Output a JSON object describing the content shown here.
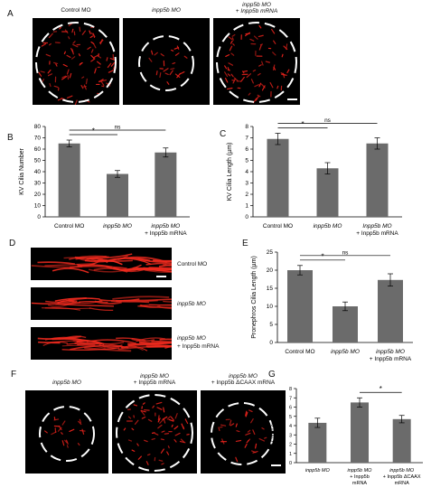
{
  "figure": {
    "panels": {
      "A": "A",
      "B": "B",
      "C": "C",
      "D": "D",
      "E": "E",
      "F": "F",
      "G": "G"
    },
    "panelA": {
      "captions": [
        {
          "line1": "Control MO",
          "line2": ""
        },
        {
          "line1": "inpp5b MO",
          "line2": ""
        },
        {
          "line1": "inpp5b MO",
          "line2": "+ Inpp5b mRNA"
        }
      ]
    },
    "panelD": {
      "labels": [
        {
          "line1": "Control MO",
          "line2": ""
        },
        {
          "line1": "inpp5b MO",
          "line2": ""
        },
        {
          "line1": "inpp5b MO",
          "line2": "+ Inpp5b mRNA"
        }
      ]
    },
    "panelF": {
      "captions": [
        {
          "line1": "inpp5b MO",
          "line2": ""
        },
        {
          "line1": "inpp5b MO",
          "line2": "+ Inpp5b mRNA"
        },
        {
          "line1": "inpp5b MO",
          "line2": "+ Inpp5b ΔCAAX mRNA"
        }
      ]
    },
    "colors": {
      "bar": "#6b6b6b",
      "cilia": "#e01515",
      "dashed_circle": "#ffffff",
      "background_micro": "#000000"
    }
  },
  "chart_data": [
    {
      "id": "B",
      "type": "bar",
      "categories": [
        "Control MO",
        "inpp5b MO",
        "inpp5b MO + Inpp5b mRNA"
      ],
      "category_lines": [
        [
          "Control MO"
        ],
        [
          "inpp5b MO"
        ],
        [
          "inpp5b MO",
          "+ Inpp5b mRNA"
        ]
      ],
      "values": [
        65,
        38,
        57
      ],
      "errors": [
        3,
        3,
        4
      ],
      "ylabel": "KV Cilia Number",
      "ylim": [
        0,
        80
      ],
      "yticks": [
        "0",
        "10",
        "20",
        "30",
        "40",
        "50",
        "60",
        "70",
        "80"
      ],
      "significance": [
        {
          "from": 0,
          "to": 1,
          "label": "*"
        },
        {
          "from": 0,
          "to": 2,
          "label": "ns"
        }
      ]
    },
    {
      "id": "C",
      "type": "bar",
      "categories": [
        "Control MO",
        "inpp5b MO",
        "Inpp5b MO + Inpp5b mRNA"
      ],
      "category_lines": [
        [
          "Control MO"
        ],
        [
          "inpp5b MO"
        ],
        [
          "Inpp5b MO",
          "+ Inpp5b mRNA"
        ]
      ],
      "values": [
        6.9,
        4.3,
        6.5
      ],
      "errors": [
        0.5,
        0.5,
        0.5
      ],
      "ylabel": "KV Cilia Length (µm)",
      "ylim": [
        0,
        8
      ],
      "yticks": [
        "0",
        "1",
        "2",
        "3",
        "4",
        "5",
        "6",
        "7",
        "8"
      ],
      "significance": [
        {
          "from": 0,
          "to": 1,
          "label": "*"
        },
        {
          "from": 0,
          "to": 2,
          "label": "ns"
        }
      ]
    },
    {
      "id": "E",
      "type": "bar",
      "categories": [
        "Control MO",
        "inpp5b MO",
        "inpp5b MO + Inpp5b mRNA"
      ],
      "category_lines": [
        [
          "Control MO"
        ],
        [
          "inpp5b MO"
        ],
        [
          "inpp5b MO",
          "+ Inpp5b mRNA"
        ]
      ],
      "values": [
        20,
        10,
        17.3
      ],
      "errors": [
        1.3,
        1.2,
        1.7
      ],
      "ylabel": "Pronephros Cilia Length (µm)",
      "ylim": [
        0,
        25
      ],
      "yticks": [
        "0",
        "5",
        "10",
        "15",
        "20",
        "25"
      ],
      "significance": [
        {
          "from": 0,
          "to": 1,
          "label": "*"
        },
        {
          "from": 0,
          "to": 2,
          "label": "ns"
        }
      ]
    },
    {
      "id": "G",
      "type": "bar",
      "categories": [
        "inpp5b MO",
        "inpp5b MO + Inpp5b mRNA",
        "inpp5b MO + Inpp5b ΔCAAX mRNA"
      ],
      "category_lines": [
        [
          "inpp5b MO"
        ],
        [
          "inpp5b MO",
          "+ Inpp5b",
          "mRNA"
        ],
        [
          "inpp5b MO",
          "+ Inpp5b ΔCAAX",
          "mRNA"
        ]
      ],
      "values": [
        4.3,
        6.5,
        4.7
      ],
      "errors": [
        0.5,
        0.5,
        0.4
      ],
      "ylabel": "KV Cilia Length (µm)",
      "ylim": [
        0,
        8
      ],
      "yticks": [
        "0",
        "1",
        "2",
        "3",
        "4",
        "5",
        "6",
        "7",
        "8"
      ],
      "significance": [
        {
          "from": 1,
          "to": 2,
          "label": "*"
        }
      ]
    }
  ]
}
